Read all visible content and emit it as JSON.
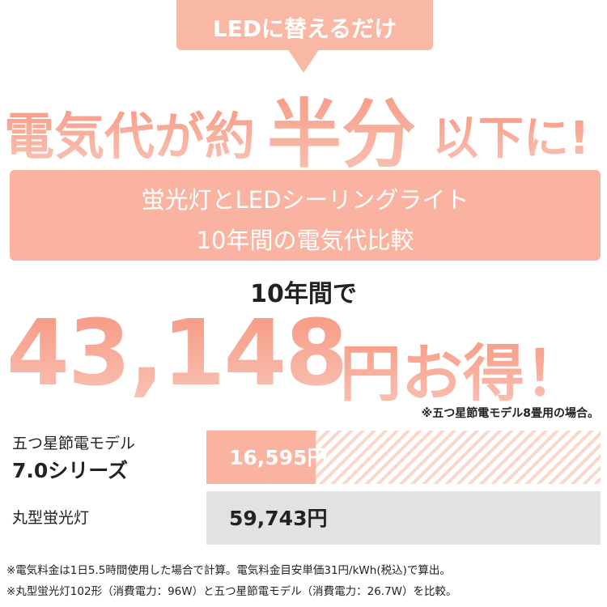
{
  "badge": "LEDに替えるだけ",
  "headline": [
    "電気代が約",
    "半分",
    "以下に!"
  ],
  "subtitle": [
    "蛍光灯とLEDシーリングライト",
    "10年間の電気代比較"
  ],
  "lead": "10年間で",
  "savings": [
    "43,148",
    "円お得！"
  ],
  "note": "※五つ星節電モデル8畳用の場合。",
  "chart_data": {
    "type": "bar",
    "categories": [
      "五つ星節電モデル\n7.0シリーズ",
      "丸型蛍光灯"
    ],
    "values": [
      16595,
      59743
    ],
    "value_labels": [
      "16,595円",
      "59,743円"
    ],
    "colors": [
      "#f9b3a0",
      "#e2e2e2"
    ]
  },
  "footnotes": [
    "※電気料金は1日5.5時間使用した場合で計算。電気料金目安単価31円/kWh(税込)で算出。",
    "※丸型蛍光灯102形（消費電力：96W）と五つ星節電モデル（消費電力：26.7W）を比較。"
  ]
}
